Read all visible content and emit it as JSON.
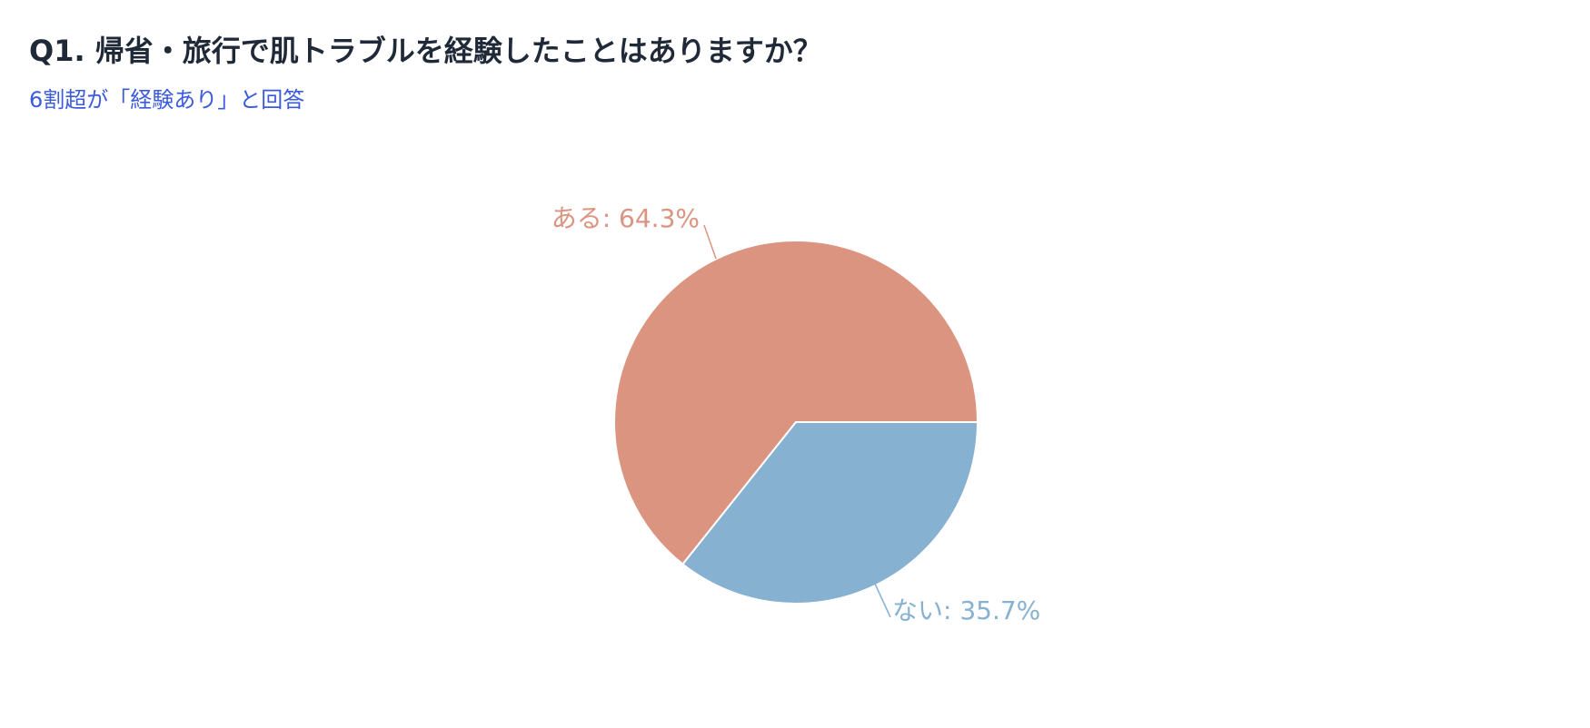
{
  "header": {
    "title": "Q1. 帰省・旅行で肌トラブルを経験したことはありますか？",
    "subtitle": "6割超が「経験あり」と回答"
  },
  "colors": {
    "title": "#1f2937",
    "subtitle": "#3b5bdb",
    "slice_aru": "#db9480",
    "slice_nai": "#87b1d1"
  },
  "chart_data": {
    "type": "pie",
    "title": "Q1. 帰省・旅行で肌トラブルを経験したことはありますか？",
    "subtitle": "6割超が「経験あり」と回答",
    "slices": [
      {
        "label": "ある",
        "value": 64.3,
        "display": "ある: 64.3%",
        "color": "#db9480"
      },
      {
        "label": "ない",
        "value": 35.7,
        "display": "ない: 35.7%",
        "color": "#87b1d1"
      }
    ],
    "legend": "none",
    "label_style": "outside with leader lines"
  }
}
